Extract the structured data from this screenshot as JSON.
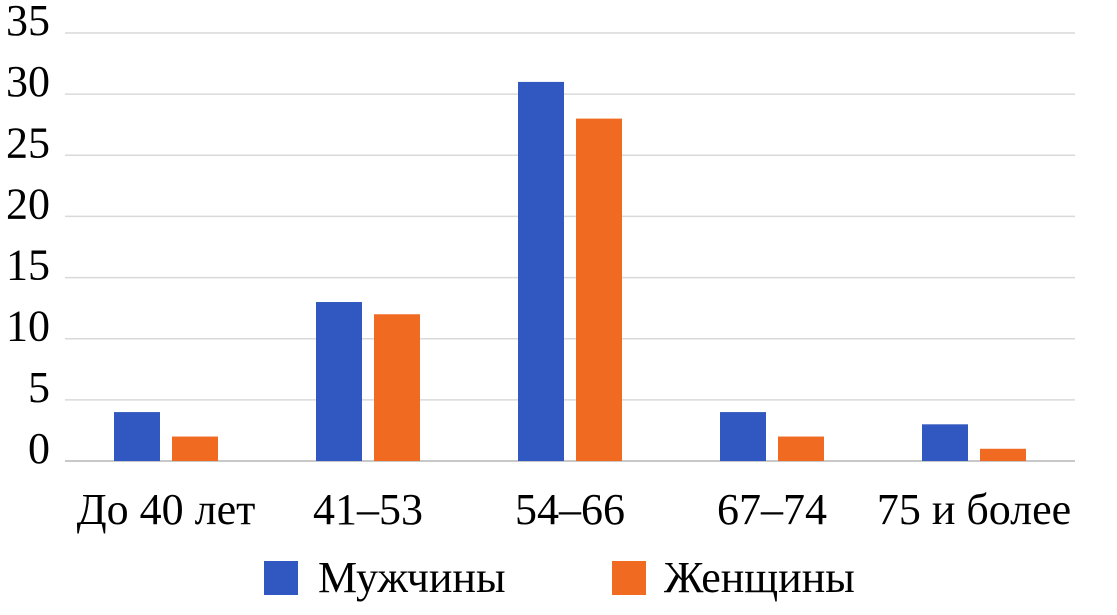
{
  "chart_data": {
    "type": "bar",
    "categories": [
      "До 40 лет",
      "41–53",
      "54–66",
      "67–74",
      "75 и более"
    ],
    "series": [
      {
        "name": "Мужчины",
        "values": [
          4,
          13,
          31,
          4,
          3
        ],
        "color": "#3157c0"
      },
      {
        "name": "Женщины",
        "values": [
          2,
          12,
          28,
          2,
          1
        ],
        "color": "#f06a22"
      }
    ],
    "ylim": [
      0,
      35
    ],
    "yticks": [
      "0",
      "5",
      "10",
      "15",
      "20",
      "25",
      "30",
      "35"
    ],
    "grid": true,
    "legend_position": "bottom",
    "title": "",
    "xlabel": "",
    "ylabel": ""
  }
}
